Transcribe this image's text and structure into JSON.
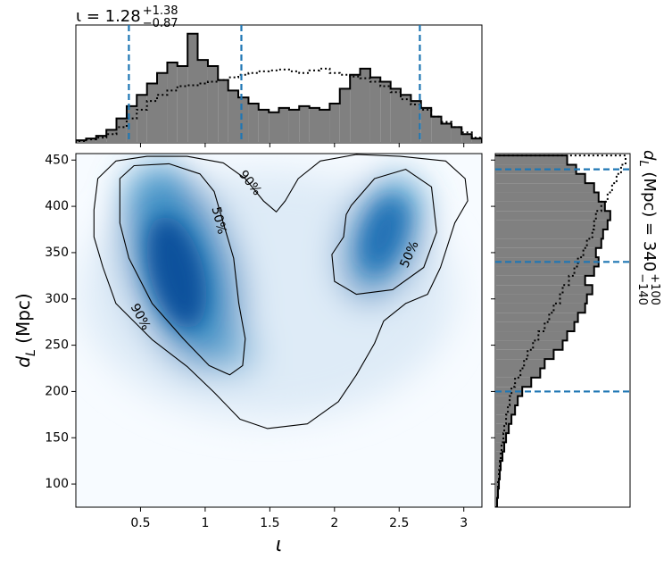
{
  "chart_data": [
    {
      "type": "density",
      "xlim": [
        0,
        3.14
      ],
      "ylim": [
        75,
        457
      ],
      "xticks": [
        0.5,
        1.0,
        1.5,
        2.0,
        2.5,
        3.0
      ],
      "yticks": [
        100,
        150,
        200,
        250,
        300,
        350,
        400,
        450
      ],
      "x_label": "ι",
      "y_label": {
        "symbol": "d",
        "subscript": "L",
        "unit": " (Mpc)"
      },
      "contour_color": "#000000",
      "contours": [
        {
          "label": "90%",
          "x": [
            0.14,
            0.17,
            0.31,
            0.55,
            0.86,
            1.14,
            1.31,
            1.45,
            1.55,
            1.62,
            1.72,
            1.89,
            2.17,
            2.51,
            2.86,
            3.01,
            3.03,
            2.93,
            2.82,
            2.72,
            2.55,
            2.38,
            2.31,
            2.17,
            2.03,
            1.79,
            1.48,
            1.27,
            1.07,
            0.86,
            0.59,
            0.31,
            0.21,
            0.14
          ],
          "y": [
            396,
            430,
            449,
            454,
            454,
            447,
            430,
            406,
            394,
            406,
            430,
            449,
            456,
            454,
            449,
            430,
            406,
            382,
            334,
            305,
            295,
            276,
            252,
            218,
            189,
            165,
            160,
            170,
            199,
            227,
            256,
            295,
            334,
            367
          ]
        },
        {
          "label": "50%",
          "x": [
            0.34,
            0.45,
            0.72,
            0.96,
            1.07,
            1.14,
            1.22,
            1.26,
            1.31,
            1.29,
            1.19,
            1.03,
            0.83,
            0.59,
            0.41,
            0.34
          ],
          "y": [
            430,
            444,
            446,
            435,
            416,
            382,
            344,
            295,
            257,
            228,
            218,
            228,
            257,
            295,
            344,
            382
          ]
        },
        {
          "label": "50%",
          "x": [
            2.13,
            2.31,
            2.55,
            2.75,
            2.79,
            2.69,
            2.45,
            2.17,
            2.0,
            1.98,
            2.07,
            2.09
          ],
          "y": [
            401,
            430,
            440,
            421,
            372,
            334,
            310,
            305,
            319,
            348,
            367,
            391
          ]
        }
      ]
    },
    {
      "type": "histogram",
      "title": {
        "main": "ι = 1.28",
        "upper": "+1.38",
        "lower": "−0.87"
      },
      "xlim": [
        0,
        3.14
      ],
      "ylim": [
        0,
        135
      ],
      "bins": [
        0,
        0.079,
        0.157,
        0.236,
        0.314,
        0.393,
        0.471,
        0.55,
        0.628,
        0.707,
        0.785,
        0.864,
        0.942,
        1.021,
        1.099,
        1.178,
        1.256,
        1.335,
        1.413,
        1.492,
        1.57,
        1.649,
        1.727,
        1.806,
        1.884,
        1.963,
        2.041,
        2.12,
        2.198,
        2.277,
        2.355,
        2.434,
        2.512,
        2.591,
        2.669,
        2.748,
        2.826,
        2.905,
        2.983,
        3.062,
        3.14
      ],
      "series": [
        {
          "color": "#808080",
          "style": "filled",
          "values": [
            3,
            5,
            8,
            15,
            28,
            42,
            55,
            68,
            80,
            92,
            88,
            125,
            95,
            88,
            72,
            60,
            52,
            45,
            38,
            35,
            40,
            38,
            42,
            40,
            38,
            45,
            62,
            78,
            85,
            75,
            70,
            62,
            55,
            48,
            40,
            30,
            22,
            18,
            10,
            5
          ]
        },
        {
          "color": "#000000",
          "style": "dotted",
          "values": [
            2,
            4,
            6,
            10,
            18,
            28,
            38,
            48,
            55,
            60,
            65,
            66,
            68,
            70,
            72,
            75,
            78,
            80,
            82,
            83,
            84,
            82,
            80,
            83,
            85,
            80,
            78,
            76,
            74,
            70,
            65,
            58,
            50,
            44,
            38,
            30,
            24,
            18,
            12,
            6
          ]
        }
      ],
      "quantiles": [
        0.41,
        1.28,
        2.66
      ],
      "quantile_color": "#1f77b4"
    },
    {
      "type": "histogram",
      "orientation": "horizontal",
      "title": {
        "symbol": "d",
        "subscript": "L",
        "main": " (Mpc) = 340",
        "upper": "+100",
        "lower": "−140"
      },
      "ylim": [
        75,
        457
      ],
      "xlim": [
        0,
        150
      ],
      "bins": [
        75,
        85,
        95,
        105,
        115,
        125,
        135,
        145,
        155,
        165,
        175,
        185,
        195,
        205,
        215,
        225,
        235,
        245,
        255,
        265,
        275,
        285,
        295,
        305,
        315,
        325,
        335,
        345,
        355,
        365,
        375,
        385,
        395,
        405,
        415,
        425,
        435,
        445,
        455
      ],
      "series": [
        {
          "color": "#808080",
          "style": "filled",
          "values": [
            2,
            3,
            4,
            5,
            6,
            8,
            10,
            12,
            15,
            18,
            22,
            25,
            30,
            40,
            50,
            55,
            65,
            75,
            80,
            88,
            92,
            100,
            102,
            108,
            100,
            110,
            115,
            112,
            118,
            120,
            125,
            128,
            122,
            115,
            110,
            100,
            90,
            80
          ]
        },
        {
          "color": "#000000",
          "style": "dotted",
          "values": [
            2,
            3,
            3,
            4,
            5,
            6,
            7,
            9,
            10,
            12,
            14,
            16,
            18,
            22,
            28,
            32,
            36,
            42,
            48,
            55,
            60,
            65,
            72,
            75,
            82,
            88,
            92,
            98,
            102,
            108,
            110,
            112,
            118,
            125,
            130,
            135,
            140,
            145
          ]
        }
      ],
      "quantiles": [
        200,
        340,
        440
      ],
      "quantile_color": "#1f77b4"
    }
  ]
}
